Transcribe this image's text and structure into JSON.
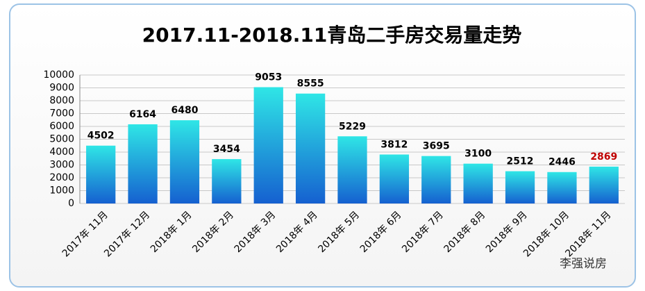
{
  "chart_data": {
    "type": "bar",
    "title": "2017.11-2018.11青岛二手房交易量走势",
    "categories": [
      "2017年 11月",
      "2017年 12月",
      "2018年 1月",
      "2018年 2月",
      "2018年 3月",
      "2018年 4月",
      "2018年 5月",
      "2018年 6月",
      "2018年 7月",
      "2018年 8月",
      "2018年 9月",
      "2018年 10月",
      "2018年 11月"
    ],
    "values": [
      4502,
      6164,
      6480,
      3454,
      9053,
      8555,
      5229,
      3812,
      3695,
      3100,
      2512,
      2446,
      2869
    ],
    "value_label_colors": [
      "#000000",
      "#000000",
      "#000000",
      "#000000",
      "#000000",
      "#000000",
      "#000000",
      "#000000",
      "#000000",
      "#000000",
      "#000000",
      "#000000",
      "#c00000"
    ],
    "colors": [
      "#2fe6e6",
      "#1560d0"
    ],
    "ylim": [
      0,
      10000
    ],
    "yticks": [
      0,
      1000,
      2000,
      3000,
      4000,
      5000,
      6000,
      7000,
      8000,
      9000,
      10000
    ],
    "grid": true,
    "watermark": "李强说房"
  }
}
